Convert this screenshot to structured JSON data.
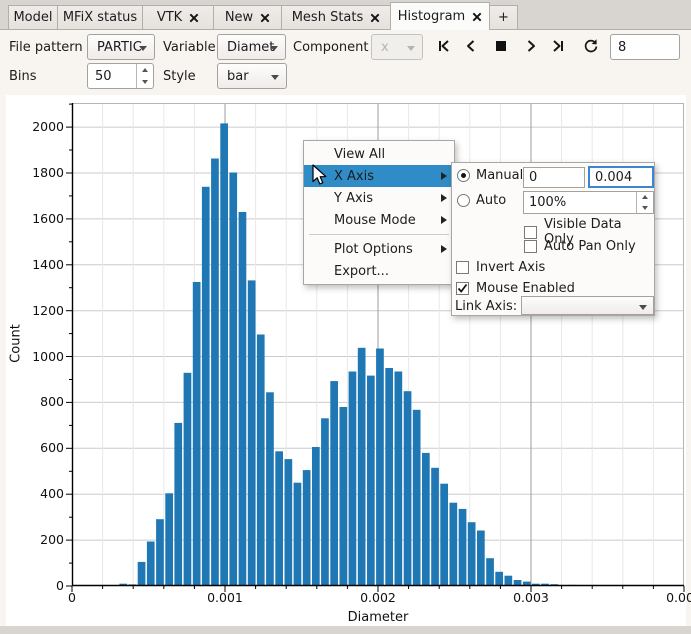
{
  "tab_bar": {
    "tabs": [
      {
        "label": "Model",
        "closable": false,
        "active": false
      },
      {
        "label": "MFiX status",
        "closable": false,
        "active": false
      },
      {
        "label": "VTK",
        "closable": true,
        "active": false
      },
      {
        "label": "New",
        "closable": true,
        "active": false
      },
      {
        "label": "Mesh Stats",
        "closable": true,
        "active": false
      },
      {
        "label": "Histogram",
        "closable": true,
        "active": true
      }
    ],
    "add_tab_label": "+"
  },
  "toolbar": {
    "file_pattern_label": "File pattern",
    "file_pattern_value": "PARTIC",
    "variable_label": "Variable",
    "variable_value": "Diamet",
    "component_label": "Component",
    "component_value": "x",
    "frame_number": "8",
    "bins_label": "Bins",
    "bins_value": "50",
    "style_label": "Style",
    "style_value": "bar"
  },
  "icons": {
    "close": "x-cross",
    "dropdown": "down-triangle",
    "playback": [
      "first-frame",
      "previous-frame",
      "stop",
      "next-frame",
      "last-frame"
    ],
    "refresh": "circular-arrow",
    "check": "checkmark",
    "cursor": "arrow-pointer"
  },
  "context_menu": {
    "highlight_color": "#308cc6",
    "items": [
      {
        "label": "View All",
        "submenu": false,
        "highlighted": false
      },
      {
        "label": "X Axis",
        "submenu": true,
        "highlighted": true
      },
      {
        "label": "Y Axis",
        "submenu": true,
        "highlighted": false
      },
      {
        "label": "Mouse Mode",
        "submenu": true,
        "highlighted": false
      },
      {
        "label": "Plot Options",
        "submenu": true,
        "highlighted": false
      },
      {
        "label": "Export...",
        "submenu": false,
        "highlighted": false
      }
    ]
  },
  "x_axis_panel": {
    "manual_label": "Manual",
    "manual_selected": true,
    "min_value": "0",
    "max_value": "0.004",
    "auto_label": "Auto",
    "auto_selected": false,
    "auto_value": "100%",
    "visible_data_only_label": "Visible Data Only",
    "visible_data_only_checked": false,
    "auto_pan_only_label": "Auto Pan Only",
    "auto_pan_only_checked": false,
    "invert_axis_label": "Invert Axis",
    "invert_axis_checked": false,
    "mouse_enabled_label": "Mouse Enabled",
    "mouse_enabled_checked": true,
    "link_axis_label": "Link Axis:",
    "link_axis_value": ""
  },
  "chart_data": {
    "type": "bar",
    "title": "",
    "xlabel": "Diameter",
    "ylabel": "Count",
    "xlim": [
      0,
      0.004
    ],
    "ylim": [
      0,
      2105
    ],
    "grid": true,
    "bar_color": "#1f77b4",
    "x_tick_values": [
      0,
      0.001,
      0.002,
      0.003,
      0.004
    ],
    "x_tick_labels": [
      "0",
      "0.001",
      "0.002",
      "0.003",
      "0.004"
    ],
    "y_tick_values": [
      0,
      200,
      400,
      600,
      800,
      1000,
      1200,
      1400,
      1600,
      1800,
      2000
    ],
    "bins": 50,
    "bin_start": 0.0003046,
    "bin_width": 5.993e-05,
    "values": [
      10,
      7,
      105,
      194,
      291,
      404,
      711,
      929,
      1325,
      1740,
      1863,
      2016,
      1802,
      1630,
      1332,
      1096,
      844,
      587,
      553,
      450,
      505,
      606,
      731,
      893,
      780,
      935,
      1038,
      917,
      1035,
      950,
      935,
      849,
      768,
      580,
      515,
      446,
      363,
      336,
      278,
      242,
      121,
      62,
      45,
      26,
      19,
      10,
      10,
      8,
      3,
      5
    ]
  }
}
